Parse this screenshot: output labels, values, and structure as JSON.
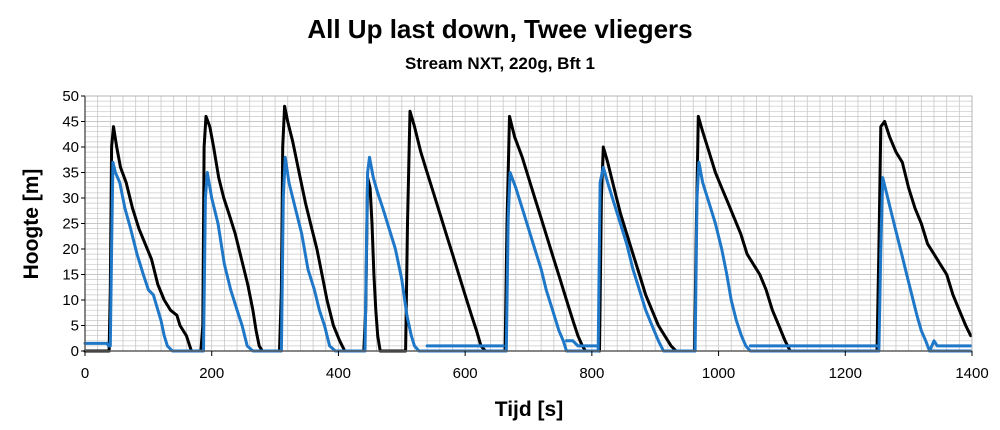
{
  "chart_data": {
    "type": "line",
    "title": "All Up last down, Twee vliegers",
    "subtitle": "Stream NXT, 220g, Bft 1",
    "xlabel": "Tijd [s]",
    "ylabel": "Hoogte [m]",
    "xlim": [
      0,
      1400
    ],
    "ylim": [
      0,
      50
    ],
    "x_ticks": [
      "0",
      "200",
      "400",
      "600",
      "800",
      "1000",
      "1200",
      "1400"
    ],
    "y_ticks": [
      "0",
      "5",
      "10",
      "15",
      "20",
      "25",
      "30",
      "35",
      "40",
      "45",
      "50"
    ],
    "grid": true,
    "legend": "none",
    "colors": {
      "series_black": "#000000",
      "series_blue": "#1f77c8",
      "grid": "#c8c8c8",
      "axis": "#000000"
    },
    "series": [
      {
        "color": "#000000",
        "points": [
          [
            0,
            0
          ],
          [
            38,
            0
          ],
          [
            40,
            12
          ],
          [
            42,
            40
          ],
          [
            45,
            44
          ],
          [
            50,
            40
          ],
          [
            56,
            36
          ],
          [
            65,
            33
          ],
          [
            75,
            28
          ],
          [
            85,
            24
          ],
          [
            95,
            21
          ],
          [
            105,
            18
          ],
          [
            115,
            13
          ],
          [
            125,
            10
          ],
          [
            135,
            8
          ],
          [
            145,
            7
          ],
          [
            150,
            5
          ],
          [
            160,
            3
          ],
          [
            168,
            0
          ],
          [
            183,
            0
          ],
          [
            186,
            5
          ],
          [
            188,
            40
          ],
          [
            191,
            46
          ],
          [
            197,
            44
          ],
          [
            203,
            40
          ],
          [
            211,
            34
          ],
          [
            219,
            30
          ],
          [
            227,
            27
          ],
          [
            237,
            23
          ],
          [
            247,
            18
          ],
          [
            257,
            13
          ],
          [
            265,
            8
          ],
          [
            270,
            4
          ],
          [
            275,
            1
          ],
          [
            280,
            0
          ],
          [
            307,
            0
          ],
          [
            310,
            12
          ],
          [
            312,
            40
          ],
          [
            315,
            48
          ],
          [
            320,
            45
          ],
          [
            328,
            41
          ],
          [
            338,
            35
          ],
          [
            348,
            29
          ],
          [
            358,
            24
          ],
          [
            366,
            20
          ],
          [
            374,
            15
          ],
          [
            382,
            10
          ],
          [
            392,
            5
          ],
          [
            402,
            2
          ],
          [
            410,
            0
          ],
          [
            440,
            0
          ],
          [
            443,
            8
          ],
          [
            446,
            34
          ],
          [
            450,
            32
          ],
          [
            453,
            25
          ],
          [
            456,
            15
          ],
          [
            459,
            8
          ],
          [
            462,
            3
          ],
          [
            466,
            0
          ],
          [
            506,
            0
          ],
          [
            509,
            25
          ],
          [
            513,
            47
          ],
          [
            520,
            44
          ],
          [
            530,
            39
          ],
          [
            540,
            35
          ],
          [
            550,
            31
          ],
          [
            560,
            27
          ],
          [
            570,
            23
          ],
          [
            580,
            19
          ],
          [
            590,
            15
          ],
          [
            600,
            11
          ],
          [
            610,
            7
          ],
          [
            618,
            4
          ],
          [
            625,
            1
          ],
          [
            632,
            0
          ],
          [
            663,
            0
          ],
          [
            666,
            25
          ],
          [
            670,
            46
          ],
          [
            678,
            42
          ],
          [
            690,
            38
          ],
          [
            700,
            34
          ],
          [
            710,
            30
          ],
          [
            720,
            26
          ],
          [
            730,
            22
          ],
          [
            740,
            18
          ],
          [
            750,
            14
          ],
          [
            760,
            10
          ],
          [
            770,
            6
          ],
          [
            778,
            3
          ],
          [
            785,
            1
          ],
          [
            790,
            0
          ],
          [
            812,
            0
          ],
          [
            815,
            30
          ],
          [
            818,
            40
          ],
          [
            825,
            37
          ],
          [
            835,
            32
          ],
          [
            845,
            27
          ],
          [
            855,
            23
          ],
          [
            865,
            19
          ],
          [
            875,
            15
          ],
          [
            885,
            11
          ],
          [
            895,
            8
          ],
          [
            905,
            5
          ],
          [
            915,
            3
          ],
          [
            925,
            1
          ],
          [
            933,
            0
          ],
          [
            962,
            0
          ],
          [
            965,
            25
          ],
          [
            968,
            46
          ],
          [
            975,
            43
          ],
          [
            985,
            39
          ],
          [
            995,
            35
          ],
          [
            1005,
            32
          ],
          [
            1015,
            29
          ],
          [
            1025,
            26
          ],
          [
            1035,
            23
          ],
          [
            1045,
            19
          ],
          [
            1055,
            17
          ],
          [
            1065,
            15
          ],
          [
            1075,
            12
          ],
          [
            1085,
            8
          ],
          [
            1095,
            5
          ],
          [
            1105,
            2
          ],
          [
            1113,
            0
          ],
          [
            1250,
            0
          ],
          [
            1253,
            20
          ],
          [
            1256,
            44
          ],
          [
            1262,
            45
          ],
          [
            1270,
            42
          ],
          [
            1280,
            39
          ],
          [
            1290,
            37
          ],
          [
            1300,
            32
          ],
          [
            1310,
            28
          ],
          [
            1320,
            25
          ],
          [
            1330,
            21
          ],
          [
            1340,
            19
          ],
          [
            1350,
            17
          ],
          [
            1360,
            15
          ],
          [
            1370,
            11
          ],
          [
            1380,
            8
          ],
          [
            1390,
            5
          ],
          [
            1398,
            3
          ]
        ]
      },
      {
        "color": "#1f77c8",
        "points": [
          [
            0,
            1.5
          ],
          [
            35,
            1.5
          ],
          [
            37,
            1
          ],
          [
            40,
            1
          ],
          [
            42,
            20
          ],
          [
            44,
            37
          ],
          [
            48,
            35
          ],
          [
            55,
            33
          ],
          [
            63,
            28
          ],
          [
            72,
            24
          ],
          [
            82,
            19
          ],
          [
            92,
            15
          ],
          [
            100,
            12
          ],
          [
            108,
            11
          ],
          [
            115,
            8
          ],
          [
            120,
            6
          ],
          [
            125,
            3
          ],
          [
            130,
            1
          ],
          [
            138,
            0
          ],
          [
            187,
            0
          ],
          [
            190,
            30
          ],
          [
            193,
            35
          ],
          [
            200,
            30
          ],
          [
            210,
            25
          ],
          [
            220,
            17
          ],
          [
            230,
            12
          ],
          [
            240,
            8
          ],
          [
            248,
            5
          ],
          [
            256,
            1
          ],
          [
            265,
            0
          ],
          [
            310,
            0
          ],
          [
            313,
            30
          ],
          [
            316,
            38
          ],
          [
            322,
            33
          ],
          [
            332,
            28
          ],
          [
            342,
            23
          ],
          [
            352,
            16
          ],
          [
            362,
            12
          ],
          [
            370,
            8
          ],
          [
            378,
            5
          ],
          [
            386,
            1
          ],
          [
            395,
            0
          ],
          [
            442,
            0
          ],
          [
            446,
            35
          ],
          [
            449,
            38
          ],
          [
            455,
            34
          ],
          [
            462,
            31
          ],
          [
            470,
            28
          ],
          [
            480,
            24
          ],
          [
            490,
            20
          ],
          [
            500,
            14
          ],
          [
            508,
            7
          ],
          [
            515,
            3
          ],
          [
            520,
            1
          ],
          [
            527,
            0
          ],
          [
            665,
            0
          ],
          [
            668,
            26
          ],
          [
            671,
            35
          ],
          [
            680,
            32
          ],
          [
            690,
            28
          ],
          [
            700,
            24
          ],
          [
            710,
            20
          ],
          [
            720,
            16
          ],
          [
            728,
            12
          ],
          [
            738,
            8
          ],
          [
            748,
            4
          ],
          [
            755,
            2
          ],
          [
            760,
            0
          ],
          [
            810,
            0
          ],
          [
            813,
            33
          ],
          [
            818,
            36
          ],
          [
            825,
            33
          ],
          [
            835,
            29
          ],
          [
            845,
            25
          ],
          [
            855,
            21
          ],
          [
            865,
            16
          ],
          [
            875,
            12
          ],
          [
            885,
            8
          ],
          [
            895,
            5
          ],
          [
            905,
            2
          ],
          [
            913,
            0
          ],
          [
            963,
            0
          ],
          [
            966,
            30
          ],
          [
            969,
            37
          ],
          [
            975,
            33
          ],
          [
            985,
            29
          ],
          [
            995,
            25
          ],
          [
            1005,
            20
          ],
          [
            1013,
            15
          ],
          [
            1020,
            10
          ],
          [
            1028,
            6
          ],
          [
            1036,
            3
          ],
          [
            1043,
            1
          ],
          [
            1050,
            0
          ],
          [
            1253,
            0
          ],
          [
            1256,
            20
          ],
          [
            1259,
            34
          ],
          [
            1265,
            31
          ],
          [
            1273,
            27
          ],
          [
            1281,
            23
          ],
          [
            1289,
            19
          ],
          [
            1297,
            15
          ],
          [
            1305,
            11
          ],
          [
            1313,
            7
          ],
          [
            1320,
            4
          ],
          [
            1327,
            2
          ],
          [
            1333,
            0
          ],
          [
            1398,
            0
          ]
        ]
      },
      {
        "color": "#1f77c8",
        "points": [
          [
            540,
            1
          ],
          [
            548,
            1
          ],
          [
            556,
            1
          ],
          [
            564,
            1
          ],
          [
            572,
            1
          ],
          [
            580,
            1
          ],
          [
            588,
            1
          ],
          [
            596,
            1
          ],
          [
            604,
            1
          ],
          [
            612,
            1
          ],
          [
            620,
            1
          ],
          [
            628,
            1
          ],
          [
            636,
            1
          ],
          [
            644,
            1
          ],
          [
            652,
            1
          ],
          [
            660,
            1
          ]
        ]
      },
      {
        "color": "#1f77c8",
        "points": [
          [
            760,
            2
          ],
          [
            770,
            2
          ],
          [
            778,
            1
          ],
          [
            790,
            1
          ],
          [
            800,
            1
          ],
          [
            808,
            1
          ]
        ]
      },
      {
        "color": "#1f77c8",
        "points": [
          [
            1050,
            1
          ],
          [
            1070,
            1
          ],
          [
            1090,
            1
          ],
          [
            1110,
            1
          ],
          [
            1130,
            1
          ],
          [
            1150,
            1
          ],
          [
            1170,
            1
          ],
          [
            1190,
            1
          ],
          [
            1210,
            1
          ],
          [
            1230,
            1
          ],
          [
            1250,
            1
          ]
        ]
      },
      {
        "color": "#1f77c8",
        "points": [
          [
            1333,
            0
          ],
          [
            1340,
            2
          ],
          [
            1345,
            1
          ],
          [
            1360,
            1
          ],
          [
            1380,
            1
          ],
          [
            1398,
            1
          ]
        ]
      }
    ]
  }
}
